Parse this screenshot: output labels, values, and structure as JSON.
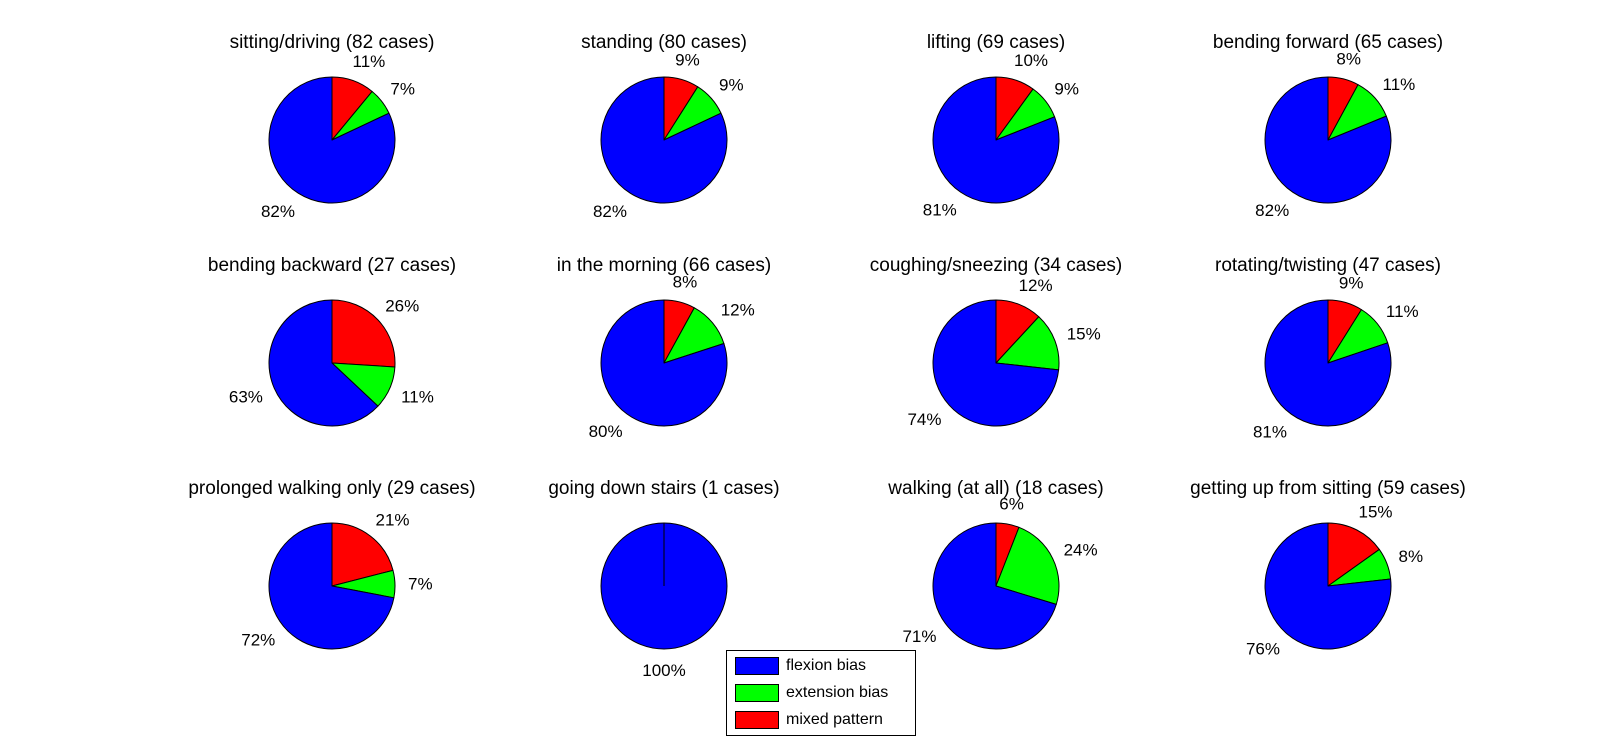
{
  "chart_data": {
    "type": "pie",
    "slice_order": [
      "mixed pattern",
      "extension bias",
      "flexion bias"
    ],
    "colors": {
      "flexion bias": "#0000FF",
      "extension bias": "#00FF00",
      "mixed pattern": "#FF0000"
    },
    "legend": [
      "flexion bias",
      "extension bias",
      "mixed pattern"
    ],
    "legend_placement": "bottom-center",
    "pies": [
      {
        "title": "sitting/driving  (82 cases)",
        "values": {
          "mixed pattern": 11,
          "extension bias": 7,
          "flexion bias": 82
        },
        "labels": {
          "mixed pattern": "11%",
          "extension bias": "7%",
          "flexion bias": "82%"
        }
      },
      {
        "title": "standing  (80 cases)",
        "values": {
          "mixed pattern": 9,
          "extension bias": 9,
          "flexion bias": 82
        },
        "labels": {
          "mixed pattern": "9%",
          "extension bias": "9%",
          "flexion bias": "82%"
        }
      },
      {
        "title": "lifting  (69 cases)",
        "values": {
          "mixed pattern": 10,
          "extension bias": 9,
          "flexion bias": 81
        },
        "labels": {
          "mixed pattern": "10%",
          "extension bias": "9%",
          "flexion bias": "81%"
        }
      },
      {
        "title": "bending forward (65 cases)",
        "values": {
          "mixed pattern": 8,
          "extension bias": 11,
          "flexion bias": 82
        },
        "labels": {
          "mixed pattern": "8%",
          "extension bias": "11%",
          "flexion bias": "82%"
        }
      },
      {
        "title": "bending backward (27 cases)",
        "values": {
          "mixed pattern": 26,
          "extension bias": 11,
          "flexion bias": 63
        },
        "labels": {
          "mixed pattern": "26%",
          "extension bias": "11%",
          "flexion bias": "63%"
        }
      },
      {
        "title": "in the morning (66 cases)",
        "values": {
          "mixed pattern": 8,
          "extension bias": 12,
          "flexion bias": 80
        },
        "labels": {
          "mixed pattern": "8%",
          "extension bias": "12%",
          "flexion bias": "80%"
        }
      },
      {
        "title": "coughing/sneezing  (34 cases)",
        "values": {
          "mixed pattern": 12,
          "extension bias": 15,
          "flexion bias": 74
        },
        "labels": {
          "mixed pattern": "12%",
          "extension bias": "15%",
          "flexion bias": "74%"
        }
      },
      {
        "title": "rotating/twisting  (47 cases)",
        "values": {
          "mixed pattern": 9,
          "extension bias": 11,
          "flexion bias": 81
        },
        "labels": {
          "mixed pattern": "9%",
          "extension bias": "11%",
          "flexion bias": "81%"
        }
      },
      {
        "title": "prolonged walking only (29 cases)",
        "values": {
          "mixed pattern": 21,
          "extension bias": 7,
          "flexion bias": 72
        },
        "labels": {
          "mixed pattern": "21%",
          "extension bias": "7%",
          "flexion bias": "72%"
        }
      },
      {
        "title": "going down stairs (1 cases)",
        "values": {
          "mixed pattern": 0,
          "extension bias": 0,
          "flexion bias": 100
        },
        "labels": {
          "mixed pattern": "",
          "extension bias": "",
          "flexion bias": "100%"
        }
      },
      {
        "title": "walking (at all) (18 cases)",
        "values": {
          "mixed pattern": 6,
          "extension bias": 24,
          "flexion bias": 71
        },
        "labels": {
          "mixed pattern": "6%",
          "extension bias": "24%",
          "flexion bias": "71%"
        }
      },
      {
        "title": "getting up from sitting (59 cases)",
        "values": {
          "mixed pattern": 15,
          "extension bias": 8,
          "flexion bias": 76
        },
        "labels": {
          "mixed pattern": "15%",
          "extension bias": "8%",
          "flexion bias": "76%"
        }
      }
    ]
  }
}
